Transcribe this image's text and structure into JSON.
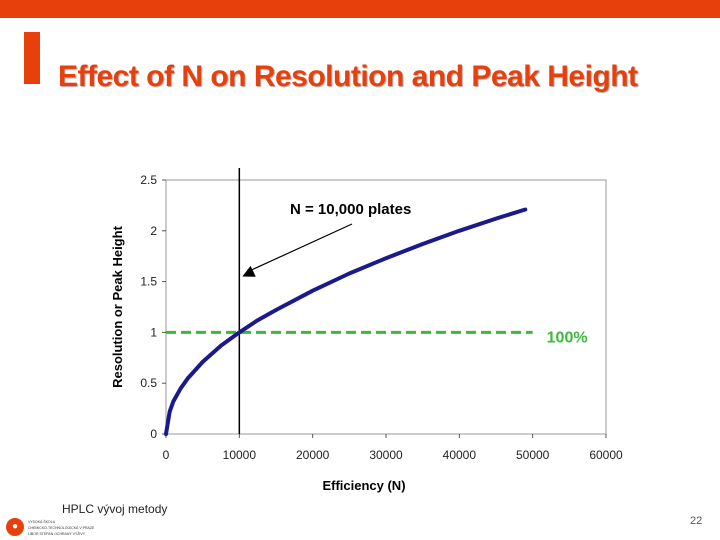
{
  "slide": {
    "title": "Effect of N on Resolution and Peak Height",
    "footer_text": "HPLC vývoj metody",
    "page_number": "22",
    "accent_color": "#e8400c"
  },
  "footer_logo": {
    "icon": "institution-logo-icon",
    "lines": [
      "VYSOKÁ ŠKOLA",
      "CHEMICKO-TECHNOLOGICKÁ V PRAZE",
      "LIBOR STEPAN OCHRANY VÝŽIVY"
    ]
  },
  "chart_data": {
    "type": "line",
    "title": "",
    "xlabel": "Efficiency (N)",
    "ylabel": "Resolution or Peak Height",
    "xlim": [
      0,
      60000
    ],
    "ylim": [
      0,
      2.5
    ],
    "x_ticks": [
      0,
      10000,
      20000,
      30000,
      40000,
      50000,
      60000
    ],
    "x_tick_labels": [
      "0",
      "10000",
      "20000",
      "30000",
      "40000",
      "50000",
      "60000"
    ],
    "y_ticks": [
      0,
      0.5,
      1,
      1.5,
      2,
      2.5
    ],
    "y_tick_labels": [
      "0",
      "0.5",
      "1",
      "1.5",
      "2",
      "2.5"
    ],
    "grid": false,
    "series": [
      {
        "name": "Resolution or Peak Height",
        "color": "#1a1a8c",
        "x": [
          0,
          500,
          1000,
          2000,
          3000,
          5000,
          7500,
          10000,
          12500,
          15000,
          20000,
          25000,
          30000,
          35000,
          40000,
          45000,
          49000
        ],
        "y": [
          0,
          0.22,
          0.32,
          0.45,
          0.55,
          0.71,
          0.87,
          1.0,
          1.12,
          1.22,
          1.41,
          1.58,
          1.73,
          1.87,
          2.0,
          2.12,
          2.21
        ]
      }
    ],
    "reference_line": {
      "y": 1,
      "x_start": 0,
      "x_end": 50000,
      "label": "100%",
      "color": "#3cb83c",
      "label_color": "#3cb83c"
    },
    "vertical_line": {
      "x": 10000,
      "color": "#000000"
    },
    "annotation": {
      "text": "N = 10,000 plates",
      "points_to": [
        10000,
        1.55
      ]
    }
  }
}
